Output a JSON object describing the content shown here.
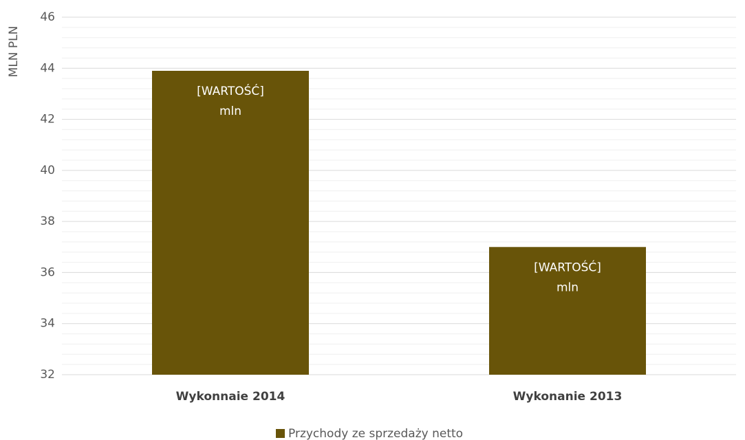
{
  "chart_data": {
    "type": "bar",
    "y_axis_label": "MLN PLN",
    "categories": [
      "Wykonnaie 2014",
      "Wykonanie 2013"
    ],
    "series": [
      {
        "name": "Przychody ze sprzedaży netto",
        "color": "#685409",
        "values": [
          43.9,
          37.0
        ],
        "value_labels": [
          [
            "[WARTOŚĆ]",
            "mln"
          ],
          [
            "[WARTOŚĆ]",
            "mln"
          ]
        ]
      }
    ],
    "ylim": [
      32,
      46
    ],
    "yticks": [
      32,
      34,
      36,
      38,
      40,
      42,
      44,
      46
    ],
    "grid": true,
    "minor_grid_divisions": 5,
    "legend": "bottom"
  }
}
